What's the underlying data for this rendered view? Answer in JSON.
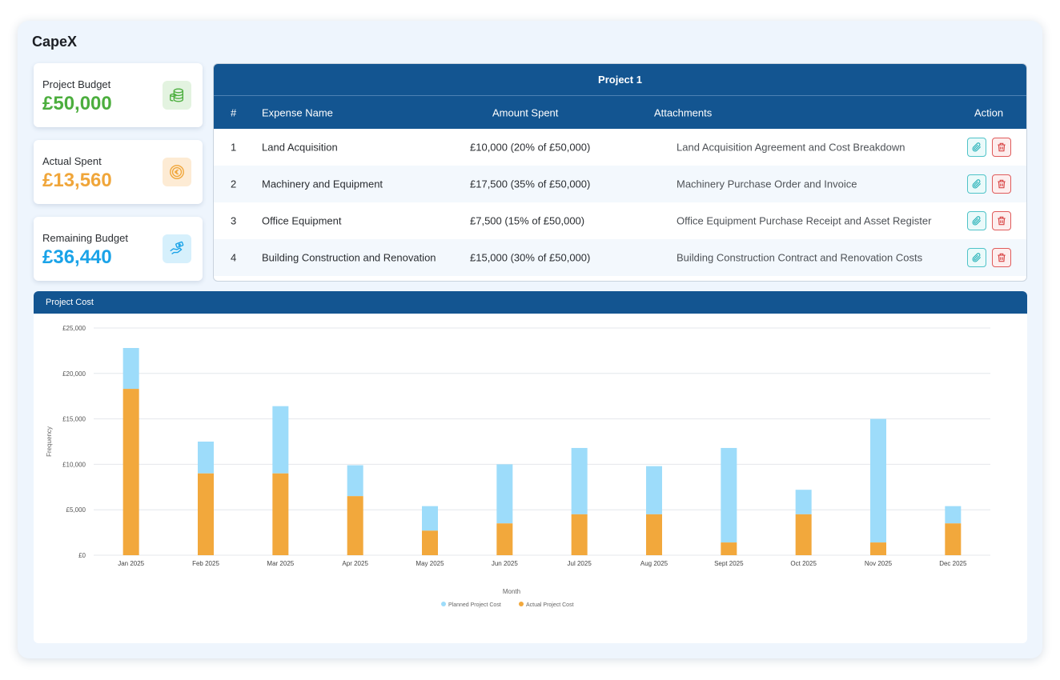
{
  "app": {
    "title": "CapeX"
  },
  "cards": [
    {
      "label": "Project Budget",
      "value": "£50,000",
      "color": "#4cae3e",
      "icon": "coins-stack-icon",
      "icon_bg": "#e3f3e0"
    },
    {
      "label": "Actual Spent",
      "value": "£13,560",
      "color": "#f0a63a",
      "icon": "euro-coin-icon",
      "icon_bg": "#fdebd4"
    },
    {
      "label": "Remaining Budget",
      "value": "£36,440",
      "color": "#1aa3e8",
      "icon": "hand-money-icon",
      "icon_bg": "#d6f0fc"
    }
  ],
  "expenses": {
    "title": "Project 1",
    "columns": [
      "#",
      "Expense Name",
      "Amount Spent",
      "Attachments",
      "Action"
    ],
    "rows": [
      {
        "num": "1",
        "name": "Land Acquisition",
        "amount": "£10,000 (20% of £50,000)",
        "attachment": "Land Acquisition Agreement and Cost Breakdown"
      },
      {
        "num": "2",
        "name": "Machinery and Equipment",
        "amount": "£17,500 (35% of £50,000)",
        "attachment": "Machinery Purchase Order and Invoice"
      },
      {
        "num": "3",
        "name": "Office Equipment",
        "amount": "£7,500 (15% of £50,000)",
        "attachment": "Office Equipment Purchase Receipt and Asset Register"
      },
      {
        "num": "4",
        "name": "Building Construction and Renovation",
        "amount": "£15,000 (30% of £50,000)",
        "attachment": "Building Construction Contract and Renovation Costs"
      }
    ],
    "accent": "#135591"
  },
  "chart_panel": {
    "title": "Project Cost"
  },
  "chart_data": {
    "type": "bar",
    "stacked": true,
    "categories": [
      "Jan 2025",
      "Feb 2025",
      "Mar 2025",
      "Apr 2025",
      "May 2025",
      "Jun 2025",
      "Jul 2025",
      "Aug 2025",
      "Sept 2025",
      "Oct 2025",
      "Nov 2025",
      "Dec 2025"
    ],
    "series": [
      {
        "name": "Actual Project Cost",
        "color": "#f2a83c",
        "values": [
          18300,
          9000,
          9000,
          6500,
          2700,
          3500,
          4500,
          4500,
          1400,
          4500,
          1400,
          3500
        ]
      },
      {
        "name": "Planned Project Cost",
        "color": "#9ddcfa",
        "values": [
          4500,
          3500,
          7400,
          3400,
          2700,
          6500,
          7300,
          5300,
          10400,
          2700,
          13600,
          1900
        ]
      }
    ],
    "xlabel": "Month",
    "ylabel": "Frequency",
    "ylim": [
      0,
      25000
    ],
    "yticks": [
      "£0",
      "£5,000",
      "£10,000",
      "£15,000",
      "£20,000",
      "£25,000"
    ],
    "ytick_values": [
      0,
      5000,
      10000,
      15000,
      20000,
      25000
    ],
    "legend": [
      "Planned Project Cost",
      "Actual Project Cost"
    ],
    "legend_position": "bottom-center",
    "grid": true
  }
}
